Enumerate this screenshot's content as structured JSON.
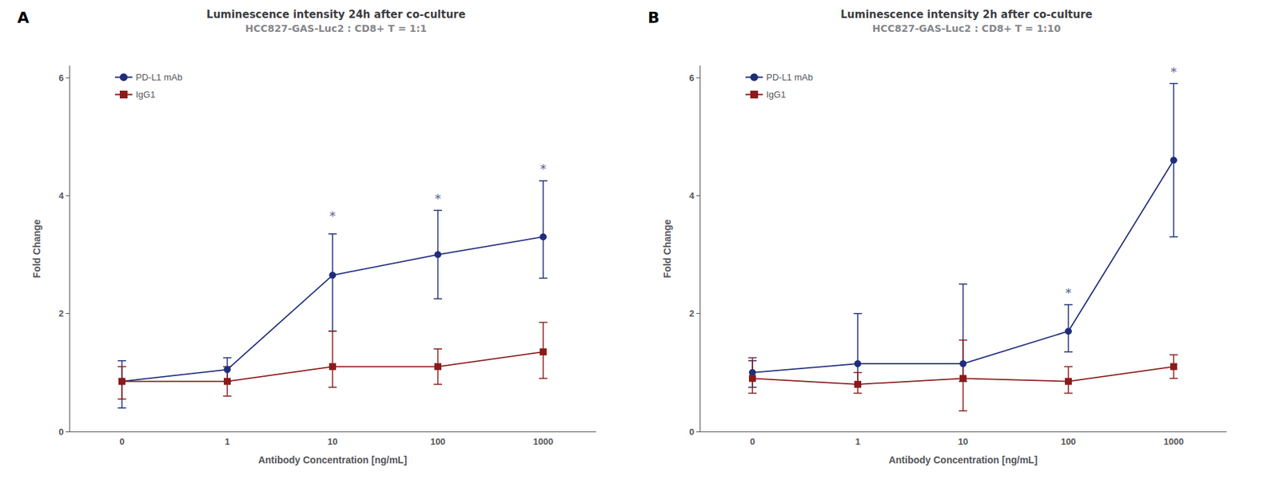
{
  "chart_data": [
    {
      "type": "line",
      "title": "Luminescence intensity 24h after co-culture",
      "subtitle": "HCC827-GAS-Luc2 : CD8+ T = 1:1",
      "xlabel": "Antibody Concentration [ng/mL]",
      "ylabel": "Fold Change",
      "categories": [
        "0",
        "1",
        "10",
        "100",
        "1000"
      ],
      "series": [
        {
          "name": "PD-L1 mAb",
          "color": "#1f2d7b",
          "marker": "circle",
          "values": [
            0.85,
            1.05,
            2.65,
            3.0,
            3.3
          ],
          "error_low": [
            0.45,
            0.2,
            0.95,
            0.75,
            0.7
          ],
          "error_high": [
            0.35,
            0.2,
            0.7,
            0.75,
            0.95
          ]
        },
        {
          "name": "IgG1",
          "color": "#8b1a1a",
          "marker": "square",
          "values": [
            0.85,
            0.85,
            1.1,
            1.1,
            1.35
          ],
          "error_low": [
            0.3,
            0.25,
            0.35,
            0.3,
            0.45
          ],
          "error_high": [
            0.25,
            0.25,
            0.6,
            0.3,
            0.5
          ]
        }
      ],
      "annotations": [
        {
          "text": "A"
        },
        {
          "text": "*",
          "x": "10",
          "y": 3.55
        },
        {
          "text": "*",
          "x": "100",
          "y": 3.85
        },
        {
          "text": "*",
          "x": "1000",
          "y": 4.35
        }
      ],
      "ylim": [
        0,
        6.2
      ],
      "yticks": [
        0,
        2,
        4,
        6
      ],
      "grid": false,
      "legend": "upper left"
    },
    {
      "type": "line",
      "title": "Luminescence intensity 2h after co-culture",
      "subtitle": "HCC827-GAS-Luc2 : CD8+ T = 1:10",
      "xlabel": "Antibody Concentration [ng/mL]",
      "ylabel": "Fold Change",
      "categories": [
        "0",
        "1",
        "10",
        "100",
        "1000"
      ],
      "series": [
        {
          "name": "PD-L1 mAb",
          "color": "#1f2d7b",
          "marker": "circle",
          "values": [
            1.0,
            1.15,
            1.15,
            1.7,
            4.6
          ],
          "error_low": [
            0.25,
            0.35,
            0.3,
            0.35,
            1.3
          ],
          "error_high": [
            0.2,
            0.85,
            1.35,
            0.45,
            1.3
          ]
        },
        {
          "name": "IgG1",
          "color": "#8b1a1a",
          "marker": "square",
          "values": [
            0.9,
            0.8,
            0.9,
            0.85,
            1.1
          ],
          "error_low": [
            0.25,
            0.15,
            0.55,
            0.2,
            0.2
          ],
          "error_high": [
            0.35,
            0.2,
            0.65,
            0.25,
            0.2
          ]
        }
      ],
      "annotations": [
        {
          "text": "B"
        },
        {
          "text": "*",
          "x": "100",
          "y": 2.25
        },
        {
          "text": "*",
          "x": "1000",
          "y": 6.0
        }
      ],
      "ylim": [
        0,
        6.2
      ],
      "yticks": [
        0,
        2,
        4,
        6
      ],
      "grid": false,
      "legend": "upper left"
    }
  ]
}
